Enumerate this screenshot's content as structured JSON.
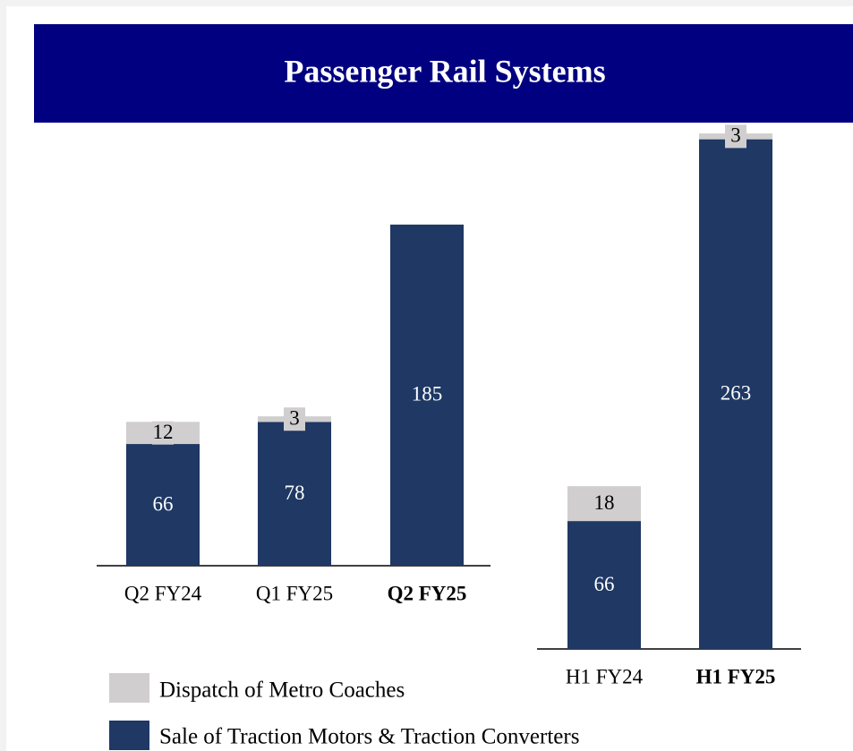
{
  "title": "Passenger Rail Systems",
  "chart_data": [
    {
      "type": "stacked_bar",
      "categories": [
        "Q2 FY24",
        "Q1 FY25",
        "Q2 FY25"
      ],
      "emphasis": [
        2
      ],
      "series": [
        {
          "name": "Sale of Traction Motors & Traction Converters",
          "color": "#1f3864",
          "values": [
            66,
            78,
            185
          ]
        },
        {
          "name": "Dispatch of Metro Coaches",
          "color": "#d0cece",
          "values": [
            12,
            3,
            null
          ]
        }
      ]
    },
    {
      "type": "stacked_bar",
      "categories": [
        "H1 FY24",
        "H1 FY25"
      ],
      "emphasis": [
        1
      ],
      "series": [
        {
          "color": "#1f3864",
          "values": [
            66,
            263
          ]
        },
        {
          "color": "#d0cece",
          "values": [
            18,
            3
          ]
        }
      ]
    }
  ]
}
